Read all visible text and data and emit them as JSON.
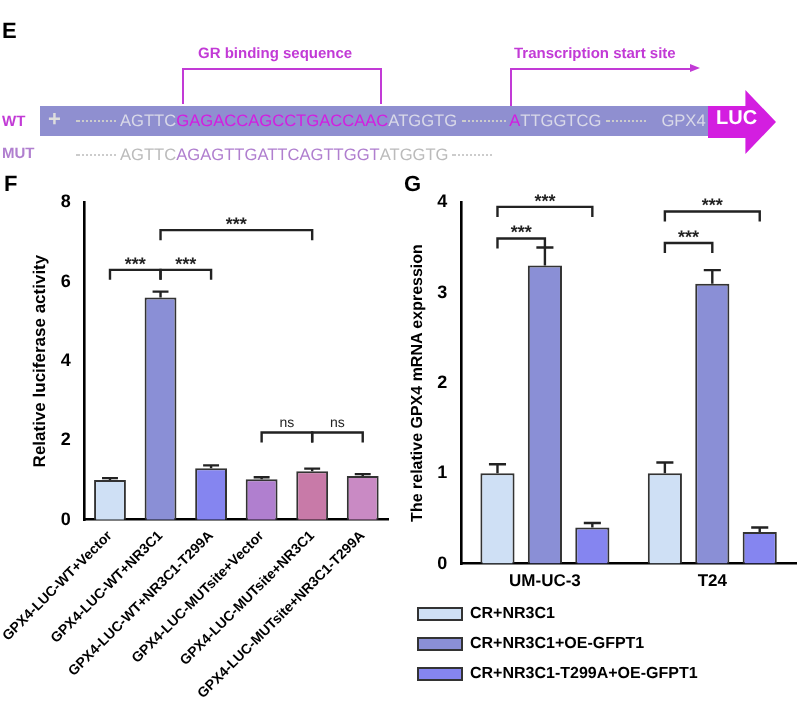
{
  "chart_data": [
    {
      "type": "other",
      "annotations": [
        "E",
        "GR binding sequence",
        "Transcription start site",
        "WT",
        "MUT",
        "+",
        "AGTTC",
        "GAGACCAGCCTGACCAAC",
        "ATGGTG",
        "A",
        "TTGGTCG",
        "GPX4",
        "LUC",
        "AGTTC",
        "AGAGTTGATTCAGTTGGT",
        "ATGGTG"
      ]
    },
    {
      "type": "bar",
      "title": "F",
      "ylabel": "Relative luciferase activity",
      "categories": [
        "GPX4-LUC-WT+Vector",
        "GPX4-LUC-WT+NR3C1",
        "GPX4-LUC-WT+NR3C1-T299A",
        "GPX4-LUC-MUTsite+Vector",
        "GPX4-LUC-MUTsite+NR3C1",
        "GPX4-LUC-MUTsite+NR3C1-T299A"
      ],
      "values": [
        1.0,
        5.6,
        1.3,
        1.02,
        1.22,
        1.1
      ],
      "errors": [
        [
          1.0,
          1.05
        ],
        [
          5.6,
          5.75
        ],
        [
          1.3,
          1.37
        ],
        [
          1.02,
          1.07
        ],
        [
          1.22,
          1.29
        ],
        [
          1.1,
          1.15
        ]
      ],
      "colors": [
        "#cfe0f5",
        "#8a8fd6",
        "#8585f0",
        "#b07fcf",
        "#c87aa8",
        "#c98ac4"
      ],
      "ylim": [
        0,
        8
      ],
      "yticks": [
        0,
        2,
        4,
        6,
        8
      ],
      "annotations": [
        "***",
        "***",
        "***",
        "ns",
        "ns"
      ]
    },
    {
      "type": "bar",
      "title": "G",
      "ylabel": "The relative GPX4 mRNA expression",
      "categories": [
        "UM-UC-3",
        "T24"
      ],
      "series": [
        {
          "name": "CR+NR3C1",
          "color": "#cfe0f5",
          "values": [
            1.0,
            1.0
          ],
          "errors": [
            [
              1.0,
              1.1
            ],
            [
              1.0,
              1.12
            ]
          ]
        },
        {
          "name": "CR+NR3C1+OE-GFPT1",
          "color": "#8a8fd6",
          "values": [
            3.3,
            3.1
          ],
          "errors": [
            [
              3.3,
              3.5
            ],
            [
              3.1,
              3.25
            ]
          ]
        },
        {
          "name": "CR+NR3C1-T299A+OE-GFPT1",
          "color": "#8585f0",
          "values": [
            0.4,
            0.35
          ],
          "errors": [
            [
              0.4,
              0.45
            ],
            [
              0.35,
              0.4
            ]
          ]
        }
      ],
      "ylim": [
        0,
        4
      ],
      "yticks": [
        0,
        1,
        2,
        3,
        4
      ],
      "legend": "bottom",
      "annotations": [
        "***",
        "***",
        "***",
        "***"
      ]
    }
  ]
}
